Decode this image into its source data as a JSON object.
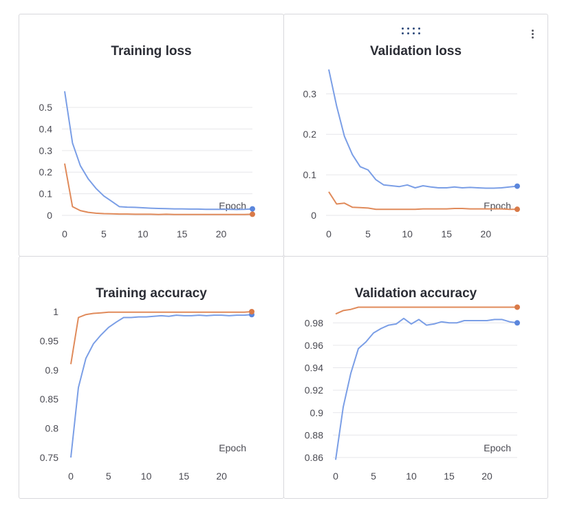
{
  "colors": {
    "blue": "#7a9ee6",
    "blue_dot": "#5b86dc",
    "orange": "#e08a5a",
    "orange_dot": "#d97a48",
    "grid": "#e6e6ea"
  },
  "icons": {
    "drag_handle": "drag-handle-icon",
    "more_menu": "more-vertical-icon"
  },
  "chart_data": [
    {
      "type": "line",
      "title": "Training loss",
      "xlabel": "Epoch",
      "ylabel": "",
      "xlim": [
        0,
        24
      ],
      "ylim": [
        0,
        0.58
      ],
      "xticks": [
        0,
        5,
        10,
        15,
        20
      ],
      "yticks": [
        0,
        0.1,
        0.2,
        0.3,
        0.4,
        0.5
      ],
      "ytick_labels": [
        "0",
        "0.1",
        "0.2",
        "0.3",
        "0.4",
        "0.5"
      ],
      "grid": true,
      "x": [
        0,
        1,
        2,
        3,
        4,
        5,
        6,
        7,
        8,
        9,
        10,
        11,
        12,
        13,
        14,
        15,
        16,
        17,
        18,
        19,
        20,
        21,
        22,
        23,
        24
      ],
      "series": [
        {
          "color": "#7a9ee6",
          "values": [
            0.575,
            0.335,
            0.23,
            0.17,
            0.125,
            0.09,
            0.065,
            0.04,
            0.038,
            0.037,
            0.035,
            0.033,
            0.032,
            0.031,
            0.03,
            0.03,
            0.029,
            0.029,
            0.028,
            0.028,
            0.028,
            0.028,
            0.027,
            0.028,
            0.03
          ]
        },
        {
          "color": "#e08a5a",
          "values": [
            0.24,
            0.04,
            0.022,
            0.014,
            0.01,
            0.008,
            0.007,
            0.006,
            0.006,
            0.005,
            0.005,
            0.005,
            0.004,
            0.005,
            0.004,
            0.004,
            0.004,
            0.004,
            0.004,
            0.004,
            0.004,
            0.004,
            0.004,
            0.004,
            0.005
          ]
        }
      ]
    },
    {
      "type": "line",
      "title": "Validation loss",
      "xlabel": "Epoch",
      "ylabel": "",
      "xlim": [
        0,
        24
      ],
      "ylim": [
        0,
        0.36
      ],
      "xticks": [
        0,
        5,
        10,
        15,
        20
      ],
      "yticks": [
        0,
        0.1,
        0.2,
        0.3
      ],
      "ytick_labels": [
        "0",
        "0.1",
        "0.2",
        "0.3"
      ],
      "grid": true,
      "x": [
        0,
        1,
        2,
        3,
        4,
        5,
        6,
        7,
        8,
        9,
        10,
        11,
        12,
        13,
        14,
        15,
        16,
        17,
        18,
        19,
        20,
        21,
        22,
        23,
        24
      ],
      "series": [
        {
          "color": "#7a9ee6",
          "values": [
            0.36,
            0.27,
            0.195,
            0.15,
            0.12,
            0.112,
            0.088,
            0.075,
            0.073,
            0.071,
            0.075,
            0.068,
            0.073,
            0.07,
            0.068,
            0.068,
            0.07,
            0.068,
            0.069,
            0.068,
            0.067,
            0.067,
            0.068,
            0.07,
            0.072
          ]
        },
        {
          "color": "#e08a5a",
          "values": [
            0.058,
            0.028,
            0.03,
            0.02,
            0.019,
            0.018,
            0.015,
            0.015,
            0.015,
            0.015,
            0.015,
            0.015,
            0.016,
            0.016,
            0.016,
            0.016,
            0.017,
            0.017,
            0.016,
            0.016,
            0.016,
            0.016,
            0.016,
            0.015,
            0.015
          ]
        }
      ]
    },
    {
      "type": "line",
      "title": "Training accuracy",
      "xlabel": "Epoch",
      "ylabel": "",
      "xlim": [
        0,
        24
      ],
      "ylim": [
        0.75,
        1.0
      ],
      "xticks": [
        0,
        5,
        10,
        15,
        20
      ],
      "yticks": [
        0.75,
        0.8,
        0.85,
        0.9,
        0.95,
        1
      ],
      "ytick_labels": [
        "0.75",
        "0.8",
        "0.85",
        "0.9",
        "0.95",
        "1"
      ],
      "grid": false,
      "x": [
        0,
        1,
        2,
        3,
        4,
        5,
        6,
        7,
        8,
        9,
        10,
        11,
        12,
        13,
        14,
        15,
        16,
        17,
        18,
        19,
        20,
        21,
        22,
        23,
        24
      ],
      "series": [
        {
          "color": "#7a9ee6",
          "values": [
            0.75,
            0.87,
            0.92,
            0.945,
            0.96,
            0.973,
            0.982,
            0.99,
            0.99,
            0.991,
            0.991,
            0.992,
            0.993,
            0.992,
            0.994,
            0.993,
            0.993,
            0.994,
            0.993,
            0.994,
            0.994,
            0.993,
            0.994,
            0.994,
            0.995
          ]
        },
        {
          "color": "#e08a5a",
          "values": [
            0.91,
            0.99,
            0.995,
            0.997,
            0.998,
            0.999,
            0.999,
            0.999,
            0.999,
            0.999,
            0.999,
            0.999,
            0.999,
            0.999,
            0.999,
            0.999,
            0.999,
            0.999,
            0.999,
            0.999,
            0.999,
            0.999,
            0.999,
            0.999,
            1.0
          ]
        }
      ]
    },
    {
      "type": "line",
      "title": "Validation accuracy",
      "xlabel": "Epoch",
      "ylabel": "",
      "xlim": [
        0,
        24
      ],
      "ylim": [
        0.86,
        0.99
      ],
      "xticks": [
        0,
        5,
        10,
        15,
        20
      ],
      "yticks": [
        0.86,
        0.88,
        0.9,
        0.92,
        0.94,
        0.96,
        0.98
      ],
      "ytick_labels": [
        "0.86",
        "0.88",
        "0.9",
        "0.92",
        "0.94",
        "0.96",
        "0.98"
      ],
      "grid": true,
      "x": [
        0,
        1,
        2,
        3,
        4,
        5,
        6,
        7,
        8,
        9,
        10,
        11,
        12,
        13,
        14,
        15,
        16,
        17,
        18,
        19,
        20,
        21,
        22,
        23,
        24
      ],
      "series": [
        {
          "color": "#7a9ee6",
          "values": [
            0.858,
            0.905,
            0.935,
            0.957,
            0.963,
            0.971,
            0.975,
            0.978,
            0.979,
            0.984,
            0.979,
            0.983,
            0.978,
            0.979,
            0.981,
            0.98,
            0.98,
            0.982,
            0.982,
            0.982,
            0.982,
            0.983,
            0.983,
            0.981,
            0.98
          ]
        },
        {
          "color": "#e08a5a",
          "values": [
            0.988,
            0.991,
            0.992,
            0.994,
            0.994,
            0.994,
            0.994,
            0.994,
            0.994,
            0.994,
            0.994,
            0.994,
            0.994,
            0.994,
            0.994,
            0.994,
            0.994,
            0.994,
            0.994,
            0.994,
            0.994,
            0.994,
            0.994,
            0.994,
            0.994
          ]
        }
      ]
    }
  ]
}
